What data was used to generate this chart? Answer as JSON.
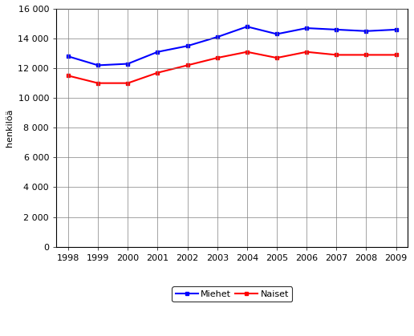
{
  "years": [
    1998,
    1999,
    2000,
    2001,
    2002,
    2003,
    2004,
    2005,
    2006,
    2007,
    2008,
    2009
  ],
  "miehet": [
    12800,
    12200,
    12300,
    13100,
    13500,
    14100,
    14800,
    14300,
    14700,
    14600,
    14500,
    14600
  ],
  "naiset": [
    11500,
    11000,
    11000,
    11700,
    12200,
    12700,
    13100,
    12700,
    13100,
    12900,
    12900,
    12900
  ],
  "miehet_color": "#0000FF",
  "naiset_color": "#FF0000",
  "ylabel": "henkilöä",
  "ylim": [
    0,
    16000
  ],
  "ytick_values": [
    0,
    2000,
    4000,
    6000,
    8000,
    10000,
    12000,
    14000,
    16000
  ],
  "ytick_labels": [
    "0",
    "2 000",
    "4 000",
    "6 000",
    "8 000",
    "10 000",
    "12 000",
    "14 000",
    "16 000"
  ],
  "legend_labels": [
    "Miehet",
    "Naiset"
  ],
  "background_color": "#ffffff",
  "grid_color": "#808080",
  "line_width": 1.5,
  "marker": "s",
  "marker_size": 3,
  "font_size": 8,
  "ylabel_fontsize": 8
}
